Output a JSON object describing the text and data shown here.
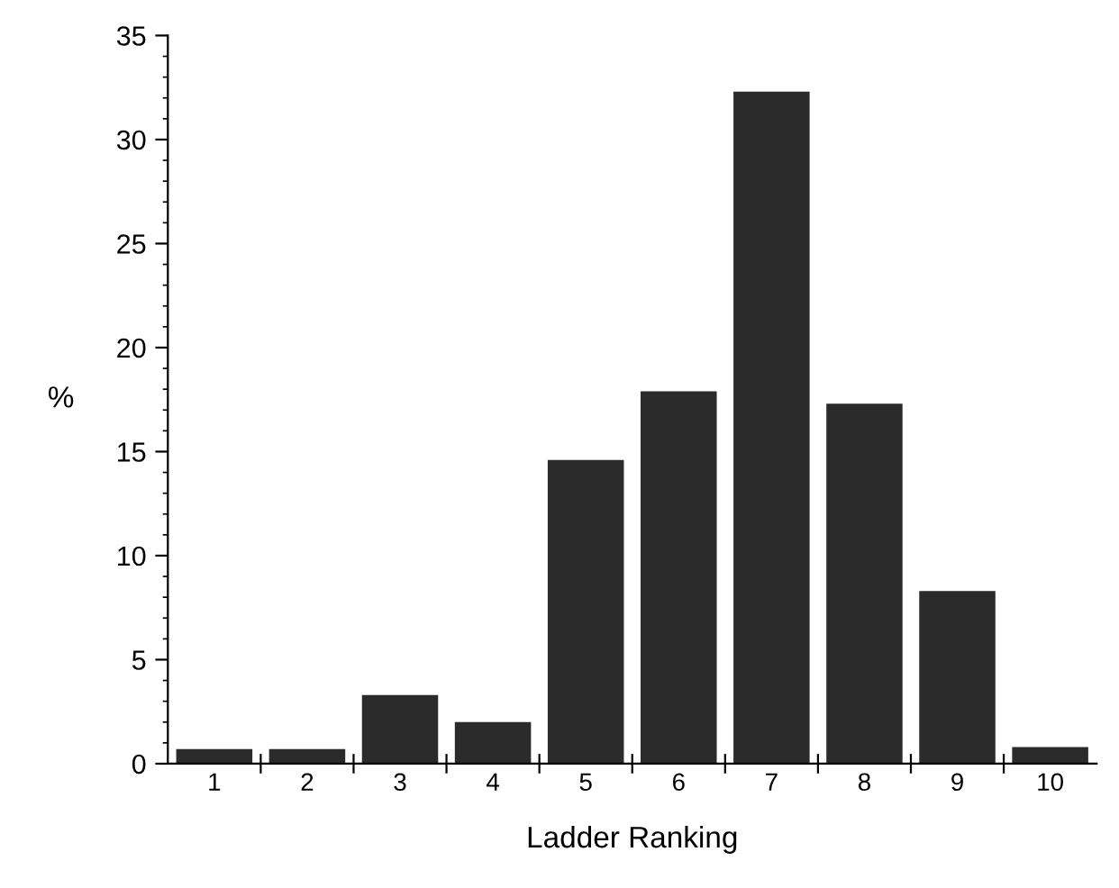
{
  "chart_data": {
    "type": "bar",
    "xlabel": "Ladder Ranking",
    "ylabel": "%",
    "categories": [
      "1",
      "2",
      "3",
      "4",
      "5",
      "6",
      "7",
      "8",
      "9",
      "10"
    ],
    "values": [
      0.7,
      0.7,
      3.3,
      2.0,
      14.6,
      17.9,
      32.3,
      17.3,
      8.3,
      0.8
    ],
    "color": "#2b2b2b",
    "ylim": [
      0,
      35
    ],
    "yticks": [
      0,
      5,
      10,
      15,
      20,
      25,
      30,
      35
    ],
    "grid": false,
    "legend": false
  }
}
